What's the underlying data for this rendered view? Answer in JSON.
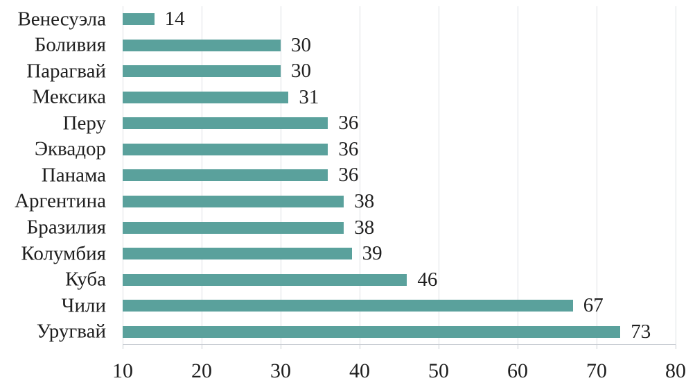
{
  "chart_data": {
    "type": "bar",
    "orientation": "horizontal",
    "title": "",
    "xlabel": "",
    "ylabel": "",
    "categories": [
      "Венесуэла",
      "Боливия",
      "Парагвай",
      "Мексика",
      "Перу",
      "Эквадор",
      "Панама",
      "Аргентина",
      "Бразилия",
      "Колумбия",
      "Куба",
      "Чили",
      "Уругвай"
    ],
    "values": [
      14,
      30,
      30,
      31,
      36,
      36,
      36,
      38,
      38,
      39,
      46,
      67,
      73
    ],
    "xlim": [
      10,
      80
    ],
    "xticks": [
      10,
      20,
      30,
      40,
      50,
      60,
      70,
      80
    ],
    "grid": "vertical-gridlines-on",
    "legend_position": "none",
    "value_labels": "right-of-bar"
  },
  "colors": {
    "bar": "#5aa19c",
    "gridline": "#dcdfe3",
    "axis_line": "#c9cdd3",
    "text": "#1f1f1f",
    "background": "#ffffff"
  }
}
